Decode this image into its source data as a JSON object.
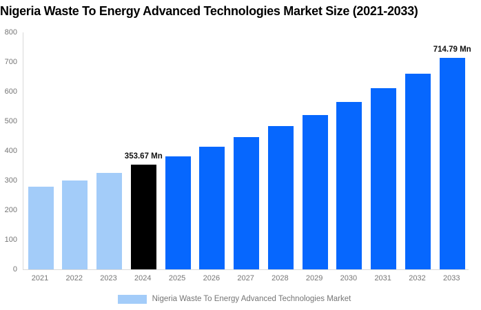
{
  "title": "Nigeria Waste To Energy Advanced Technologies Market Size (2021-2033)",
  "legend": {
    "label": "Nigeria Waste To Energy Advanced Technologies Market",
    "swatch_color": "#a3ccf9"
  },
  "colors": {
    "historical_bar": "#a3ccf9",
    "base_year_bar": "#000000",
    "forecast_bar": "#0667fe",
    "axis_line": "#d9d9d9",
    "tick_text": "#757575",
    "value_label_text": "#111111"
  },
  "chart_data": {
    "type": "bar",
    "title": "Nigeria Waste To Energy Advanced Technologies Market Size (2021-2033)",
    "series_name": "Nigeria Waste To Energy Advanced Technologies Market",
    "categories": [
      "2021",
      "2022",
      "2023",
      "2024",
      "2025",
      "2026",
      "2027",
      "2028",
      "2029",
      "2030",
      "2031",
      "2032",
      "2033"
    ],
    "values": [
      278,
      301,
      325,
      353.67,
      382,
      413,
      447,
      483,
      521,
      564,
      611,
      661,
      714.79
    ],
    "bar_colors": [
      "#a3ccf9",
      "#a3ccf9",
      "#a3ccf9",
      "#000000",
      "#0667fe",
      "#0667fe",
      "#0667fe",
      "#0667fe",
      "#0667fe",
      "#0667fe",
      "#0667fe",
      "#0667fe",
      "#0667fe"
    ],
    "annotations": [
      {
        "category": "2024",
        "text": "353.67 Mn"
      },
      {
        "category": "2033",
        "text": "714.79 Mn"
      }
    ],
    "xlabel": "",
    "ylabel": "",
    "ylim": [
      0,
      800
    ],
    "yticks": [
      0,
      100,
      200,
      300,
      400,
      500,
      600,
      700,
      800
    ],
    "grid": false,
    "legend_position": "bottom"
  }
}
